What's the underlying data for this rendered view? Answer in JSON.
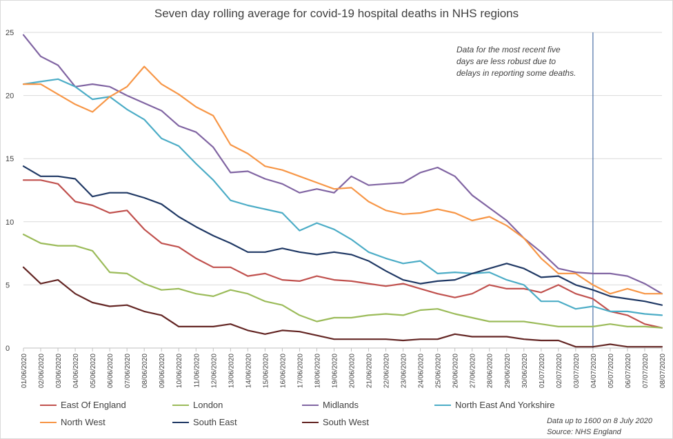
{
  "chart_data": {
    "type": "line",
    "title": "Seven day rolling average for covid-19 hospital deaths in NHS regions",
    "xlabel": "",
    "ylabel": "",
    "ylim": [
      0,
      25
    ],
    "yticks": [
      0,
      5,
      10,
      15,
      20,
      25
    ],
    "grid": true,
    "legend_position": "bottom",
    "categories": [
      "01/06/2020",
      "02/06/2020",
      "03/06/2020",
      "04/06/2020",
      "05/06/2020",
      "06/06/2020",
      "07/06/2020",
      "08/06/2020",
      "09/06/2020",
      "10/06/2020",
      "11/06/2020",
      "12/06/2020",
      "13/06/2020",
      "14/06/2020",
      "15/06/2020",
      "16/06/2020",
      "17/06/2020",
      "18/06/2020",
      "19/06/2020",
      "20/06/2020",
      "21/06/2020",
      "22/06/2020",
      "23/06/2020",
      "24/06/2020",
      "25/06/2020",
      "26/06/2020",
      "27/06/2020",
      "28/06/2020",
      "29/06/2020",
      "30/06/2020",
      "01/07/2020",
      "02/07/2020",
      "03/07/2020",
      "04/07/2020",
      "05/07/2020",
      "06/07/2020",
      "07/07/2020",
      "08/07/2020"
    ],
    "series": [
      {
        "name": "East Of England",
        "color": "#c0504d",
        "values": [
          13.3,
          13.3,
          13.0,
          11.6,
          11.3,
          10.7,
          10.9,
          9.4,
          8.3,
          8.0,
          7.1,
          6.4,
          6.4,
          5.7,
          5.9,
          5.4,
          5.3,
          5.7,
          5.4,
          5.3,
          5.1,
          4.9,
          5.1,
          4.7,
          4.3,
          4.0,
          4.3,
          5.0,
          4.7,
          4.7,
          4.4,
          5.0,
          4.3,
          3.9,
          2.9,
          2.6,
          1.9,
          1.6
        ]
      },
      {
        "name": "London",
        "color": "#9bbb59",
        "values": [
          9.0,
          8.3,
          8.1,
          8.1,
          7.7,
          6.0,
          5.9,
          5.1,
          4.6,
          4.7,
          4.3,
          4.1,
          4.6,
          4.3,
          3.7,
          3.4,
          2.6,
          2.1,
          2.4,
          2.4,
          2.6,
          2.7,
          2.6,
          3.0,
          3.1,
          2.7,
          2.4,
          2.1,
          2.1,
          2.1,
          1.9,
          1.7,
          1.7,
          1.7,
          1.9,
          1.7,
          1.7,
          1.6
        ]
      },
      {
        "name": "Midlands",
        "color": "#8064a2",
        "values": [
          24.8,
          23.1,
          22.4,
          20.7,
          20.9,
          20.7,
          20.0,
          19.4,
          18.8,
          17.6,
          17.1,
          15.9,
          13.9,
          14.0,
          13.4,
          13.0,
          12.3,
          12.6,
          12.3,
          13.6,
          12.9,
          13.0,
          13.1,
          13.9,
          14.3,
          13.6,
          12.1,
          11.1,
          10.1,
          8.7,
          7.6,
          6.3,
          6.0,
          5.9,
          5.9,
          5.7,
          5.1,
          4.3
        ]
      },
      {
        "name": "North East And Yorkshire",
        "color": "#4bacc6",
        "values": [
          20.9,
          21.1,
          21.3,
          20.7,
          19.7,
          19.9,
          18.9,
          18.1,
          16.6,
          16.0,
          14.6,
          13.3,
          11.7,
          11.3,
          11.0,
          10.7,
          9.3,
          9.9,
          9.4,
          8.6,
          7.6,
          7.1,
          6.7,
          6.9,
          5.9,
          6.0,
          5.9,
          6.0,
          5.4,
          5.0,
          3.7,
          3.7,
          3.1,
          3.3,
          2.9,
          2.9,
          2.7,
          2.6
        ]
      },
      {
        "name": "North West",
        "color": "#f79646",
        "values": [
          20.9,
          20.9,
          20.1,
          19.3,
          18.7,
          19.9,
          20.7,
          22.3,
          20.9,
          20.1,
          19.1,
          18.4,
          16.1,
          15.4,
          14.4,
          14.1,
          13.6,
          13.1,
          12.6,
          12.7,
          11.6,
          10.9,
          10.6,
          10.7,
          11.0,
          10.7,
          10.1,
          10.4,
          9.7,
          8.7,
          7.1,
          5.9,
          5.9,
          5.0,
          4.3,
          4.7,
          4.3,
          4.3
        ]
      },
      {
        "name": "South East",
        "color": "#1f3864",
        "values": [
          14.4,
          13.6,
          13.6,
          13.4,
          12.0,
          12.3,
          12.3,
          11.9,
          11.4,
          10.4,
          9.6,
          8.9,
          8.3,
          7.6,
          7.6,
          7.9,
          7.6,
          7.4,
          7.6,
          7.4,
          6.9,
          6.1,
          5.4,
          5.1,
          5.3,
          5.4,
          5.9,
          6.3,
          6.7,
          6.3,
          5.6,
          5.7,
          5.0,
          4.6,
          4.1,
          3.9,
          3.7,
          3.4
        ]
      },
      {
        "name": "South West",
        "color": "#632523",
        "values": [
          6.4,
          5.1,
          5.4,
          4.3,
          3.6,
          3.3,
          3.4,
          2.9,
          2.6,
          1.7,
          1.7,
          1.7,
          1.9,
          1.4,
          1.1,
          1.4,
          1.3,
          1.0,
          0.7,
          0.7,
          0.7,
          0.7,
          0.6,
          0.7,
          0.7,
          1.1,
          0.9,
          0.9,
          0.9,
          0.7,
          0.6,
          0.6,
          0.1,
          0.1,
          0.3,
          0.1,
          0.1,
          0.1
        ]
      }
    ],
    "marker_line_at": "04/07/2020",
    "annotations": [
      "Data for the most recent five",
      "days are less robust due to",
      "delays in reporting some deaths."
    ],
    "footnote": [
      "Data up to 1600 on 8 July 2020",
      "Source:  NHS England"
    ]
  },
  "colors": {
    "gridline": "#d9d9d9",
    "axis": "#bfbfbf",
    "marker_line": "#4a6fa5"
  }
}
